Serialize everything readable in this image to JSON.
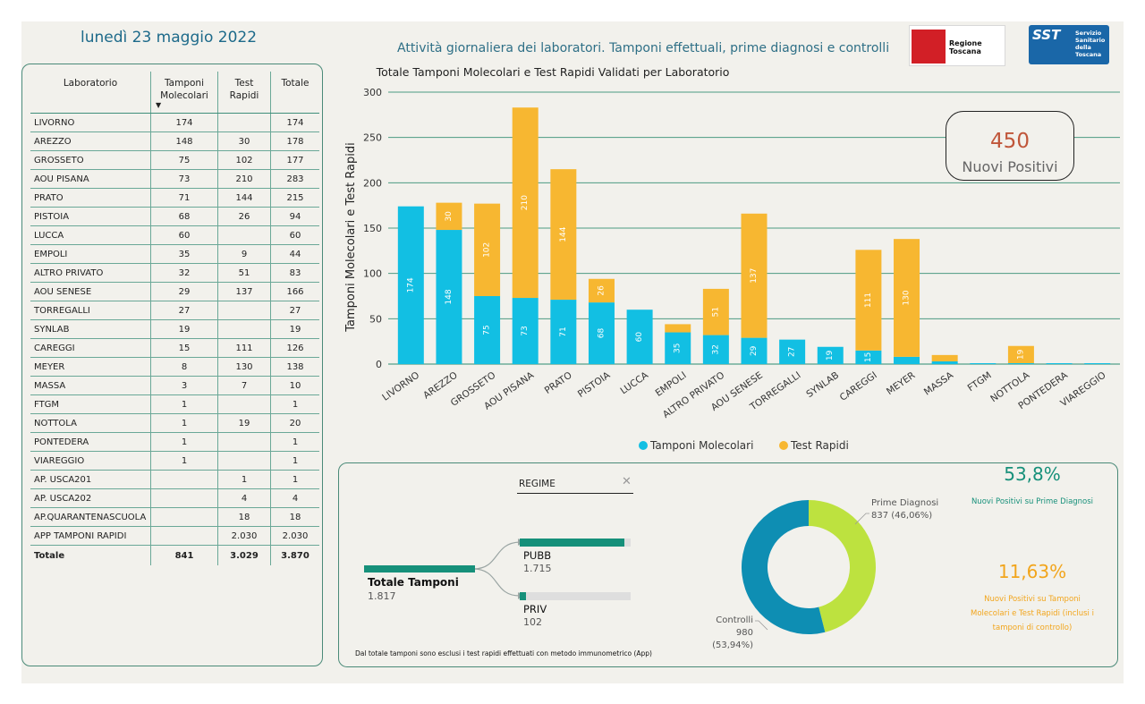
{
  "header": {
    "date": "lunedì 23 maggio 2022",
    "title": "Attività giornaliera dei laboratori. Tamponi effettuali, prime diagnosi e controlli",
    "logo_rt_text": "Regione Toscana",
    "logo_sst_mark": "SST",
    "logo_sst_text": "Servizio Sanitario della Toscana"
  },
  "table": {
    "headers": [
      "Laboratorio",
      "Tamponi Molecolari",
      "Test Rapidi",
      "Totale"
    ],
    "rows": [
      [
        "LIVORNO",
        "174",
        "",
        "174"
      ],
      [
        "AREZZO",
        "148",
        "30",
        "178"
      ],
      [
        "GROSSETO",
        "75",
        "102",
        "177"
      ],
      [
        "AOU PISANA",
        "73",
        "210",
        "283"
      ],
      [
        "PRATO",
        "71",
        "144",
        "215"
      ],
      [
        "PISTOIA",
        "68",
        "26",
        "94"
      ],
      [
        "LUCCA",
        "60",
        "",
        "60"
      ],
      [
        "EMPOLI",
        "35",
        "9",
        "44"
      ],
      [
        "ALTRO PRIVATO",
        "32",
        "51",
        "83"
      ],
      [
        "AOU SENESE",
        "29",
        "137",
        "166"
      ],
      [
        "TORREGALLI",
        "27",
        "",
        "27"
      ],
      [
        "SYNLAB",
        "19",
        "",
        "19"
      ],
      [
        "CAREGGI",
        "15",
        "111",
        "126"
      ],
      [
        "MEYER",
        "8",
        "130",
        "138"
      ],
      [
        "MASSA",
        "3",
        "7",
        "10"
      ],
      [
        "FTGM",
        "1",
        "",
        "1"
      ],
      [
        "NOTTOLA",
        "1",
        "19",
        "20"
      ],
      [
        "PONTEDERA",
        "1",
        "",
        "1"
      ],
      [
        "VIAREGGIO",
        "1",
        "",
        "1"
      ],
      [
        "AP. USCA201",
        "",
        "1",
        "1"
      ],
      [
        "AP. USCA202",
        "",
        "4",
        "4"
      ],
      [
        "AP.QUARANTENASCUOLA",
        "",
        "18",
        "18"
      ],
      [
        "APP TAMPONI RAPIDI",
        "",
        "2.030",
        "2.030"
      ]
    ],
    "total": [
      "Totale",
      "841",
      "3.029",
      "3.870"
    ]
  },
  "chart_data": [
    {
      "type": "bar",
      "stacked": true,
      "title": "Totale Tamponi Molecolari e Test Rapidi Validati per Laboratorio",
      "ylabel": "Tamponi Molecolari e Test Rapidi",
      "xlabel": "",
      "ylim": [
        0,
        300
      ],
      "yticks": [
        0,
        50,
        100,
        150,
        200,
        250,
        300
      ],
      "grid": true,
      "legend_position": "bottom",
      "categories": [
        "LIVORNO",
        "AREZZO",
        "GROSSETO",
        "AOU PISANA",
        "PRATO",
        "PISTOIA",
        "LUCCA",
        "EMPOLI",
        "ALTRO PRIVATO",
        "AOU SENESE",
        "TORREGALLI",
        "SYNLAB",
        "CAREGGI",
        "MEYER",
        "MASSA",
        "FTGM",
        "NOTTOLA",
        "PONTEDERA",
        "VIAREGGIO"
      ],
      "series": [
        {
          "name": "Tamponi Molecolari",
          "color": "#12bfe3",
          "values": [
            174,
            148,
            75,
            73,
            71,
            68,
            60,
            35,
            32,
            29,
            27,
            19,
            15,
            8,
            3,
            1,
            1,
            1,
            1
          ]
        },
        {
          "name": "Test Rapidi",
          "color": "#f7b731",
          "values": [
            0,
            30,
            102,
            210,
            144,
            26,
            0,
            9,
            51,
            137,
            0,
            0,
            111,
            130,
            7,
            0,
            19,
            0,
            0
          ]
        }
      ]
    },
    {
      "type": "pie",
      "donut": true,
      "slices": [
        {
          "name": "Prime Diagnosi",
          "value": 837,
          "label": "837 (46,06%)",
          "color": "#bde23f"
        },
        {
          "name": "Controlli",
          "value": 980,
          "label": "980 (53,94%)",
          "color": "#0e8eb3"
        }
      ]
    }
  ],
  "kpi": {
    "value": "450",
    "label": "Nuovi Positivi"
  },
  "regime": {
    "filter_label": "REGIME",
    "clear_icon": "close-icon",
    "total_label": "Totale Tamponi",
    "total_value": "1.817",
    "branches": [
      {
        "label": "PUBB",
        "value": "1.715",
        "fraction": 0.944
      },
      {
        "label": "PRIV",
        "value": "102",
        "fraction": 0.056
      }
    ],
    "footnote": "Dal totale tamponi sono esclusi i test rapidi effettuati con metodo immunometrico (App)"
  },
  "donut_labels": {
    "prime_diagnosi_name": "Prime Diagnosi",
    "prime_diagnosi_value": "837 (46,06%)",
    "controlli_name": "Controlli",
    "controlli_value": "980 (53,94%)"
  },
  "percentages": {
    "pct1": "53,8%",
    "pct1_desc": "Nuovi Positivi su Prime Diagnosi",
    "pct2": "11,63%",
    "pct2_desc": "Nuovi Positivi su Tamponi Molecolari e Test Rapidi (inclusi i tamponi di controllo)"
  }
}
